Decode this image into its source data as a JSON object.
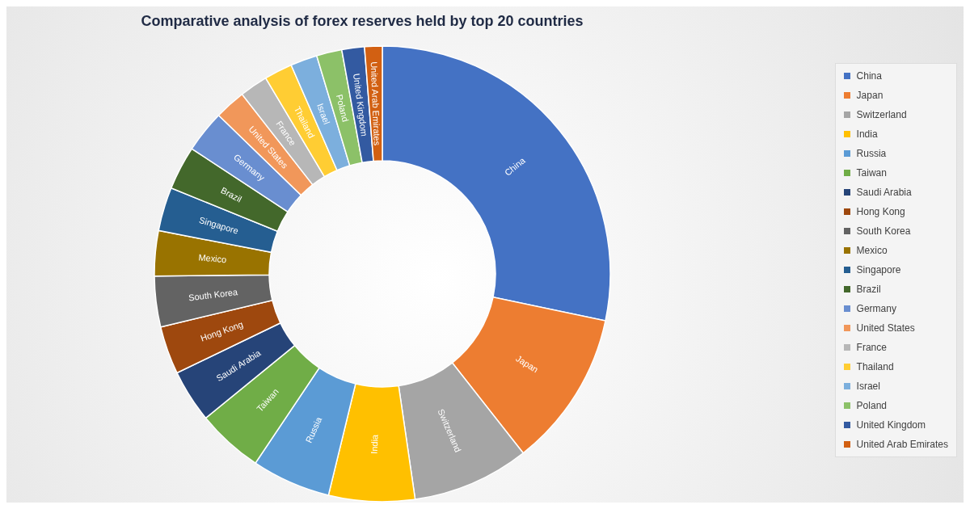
{
  "chart_data": {
    "type": "donut",
    "title": "Comparative analysis of forex reserves held by top 20 countries",
    "categories": [
      "China",
      "Japan",
      "Switzerland",
      "India",
      "Russia",
      "Taiwan",
      "Saudi Arabia",
      "Hong Kong",
      "South Korea",
      "Mexico",
      "Singapore",
      "Brazil",
      "Germany",
      "United States",
      "France",
      "Thailand",
      "Israel",
      "Poland",
      "United Kingdom",
      "United Arab Emirates"
    ],
    "values": [
      28.3,
      11.1,
      8.3,
      6.1,
      5.6,
      4.7,
      3.75,
      3.4,
      3.6,
      3.2,
      3.1,
      3.1,
      3.0,
      2.2,
      2.0,
      2.0,
      1.9,
      1.8,
      1.6,
      1.25
    ],
    "colors": [
      "#4472c4",
      "#ed7d31",
      "#a5a5a5",
      "#ffc000",
      "#5b9bd5",
      "#70ad47",
      "#264478",
      "#9e480e",
      "#636363",
      "#997300",
      "#255e91",
      "#43682b",
      "#698ed0",
      "#f1975a",
      "#b7b7b7",
      "#ffcd33",
      "#7cafdd",
      "#8cc168",
      "#335aa1",
      "#d26012"
    ],
    "legend": "right"
  }
}
